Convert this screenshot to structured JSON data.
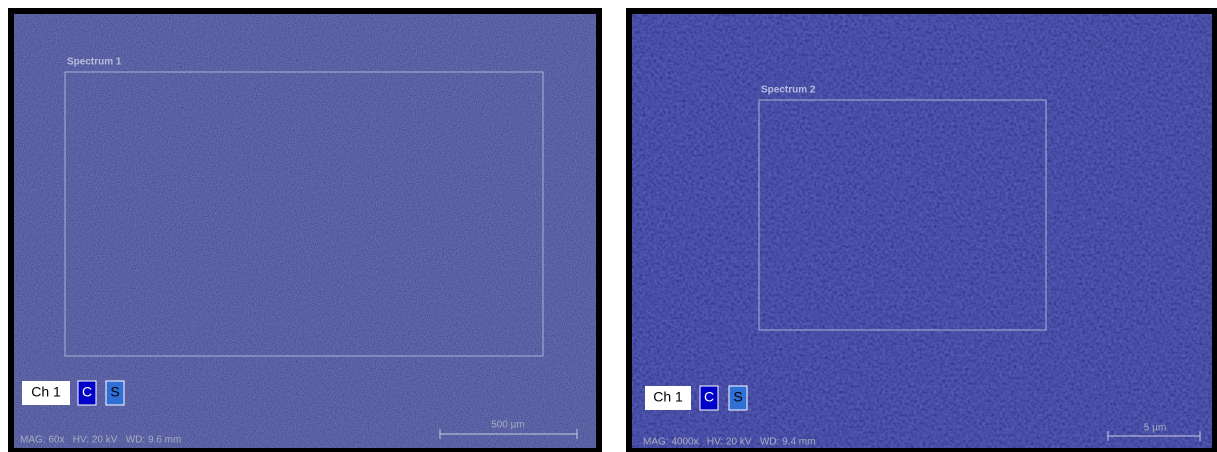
{
  "panels": [
    {
      "spectrum": "Spectrum 1",
      "channels": [
        "Ch 1",
        "C",
        "S"
      ],
      "scale": "500 µm",
      "info": "MAG: 60x   HV: 20 kV   WD: 9.6 mm"
    },
    {
      "spectrum": "Spectrum 2",
      "channels": [
        "Ch 1",
        "C",
        "S"
      ],
      "scale": "5 µm",
      "info": "MAG: 4000x   HV: 20 kV   WD: 9.4 mm"
    }
  ]
}
